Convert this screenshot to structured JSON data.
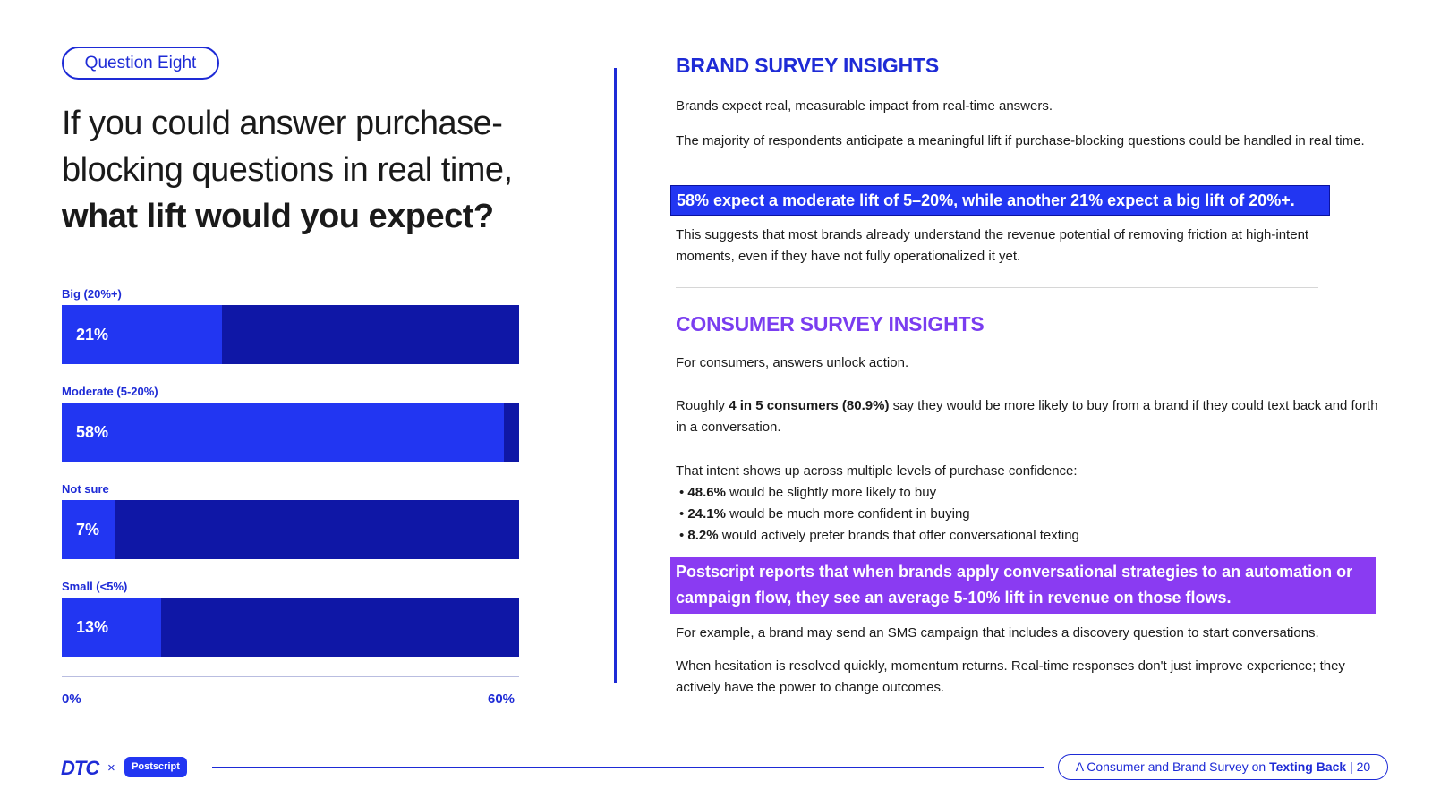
{
  "question_pill": "Question Eight",
  "headline": {
    "line1": "If you could answer purchase-",
    "line2": "blocking questions in real time,",
    "line3": "what lift would you expect?"
  },
  "chart_data": {
    "type": "bar",
    "orientation": "horizontal",
    "categories": [
      "Big (20%+)",
      "Moderate (5-20%)",
      "Not sure",
      "Small (<5%)"
    ],
    "values": [
      21,
      58,
      7,
      13
    ],
    "value_labels": [
      "21%",
      "58%",
      "7%",
      "13%"
    ],
    "xlim": [
      0,
      60
    ],
    "x_ticks": [
      "0%",
      "60%"
    ],
    "colors": {
      "fill": "#2236f2",
      "track": "#0f17a6"
    }
  },
  "brand": {
    "title": "BRAND SURVEY INSIGHTS",
    "p1": "Brands expect real, measurable impact from real-time answers.",
    "p2": "The majority of respondents anticipate a meaningful lift if purchase-blocking questions could be handled in real time.",
    "highlight": "58% expect a moderate lift of 5–20%, while another 21% expect a big lift of 20%+.",
    "p3": "This suggests that most brands already understand the revenue potential of removing friction at high-intent moments, even if they have not fully operationalized it yet."
  },
  "consumer": {
    "title": "CONSUMER SURVEY INSIGHTS",
    "p1": "For consumers, answers unlock action.",
    "p2_prefix": "Roughly ",
    "p2_bold": "4 in 5 consumers (80.9%)",
    "p2_suffix": " say they would be more likely to buy from a brand if they could text back and forth in a conversation.",
    "p3": "That intent shows up across multiple levels of purchase confidence:",
    "bullets": [
      {
        "bold": "48.6%",
        "text": " would be slightly more likely to buy"
      },
      {
        "bold": "24.1%",
        "text": " would be much more confident in buying"
      },
      {
        "bold": "8.2%",
        "text": " would actively prefer brands that offer conversational texting"
      }
    ],
    "highlight": "Postscript reports that when brands apply conversational strategies to an automation or campaign flow, they see an average 5-10% lift in revenue on those flows.",
    "p4": "For example, a brand may send an SMS campaign that includes a discovery question to start conversations.",
    "p5": "When hesitation is resolved quickly, momentum returns. Real-time responses don't just improve experience; they actively have the power to change outcomes."
  },
  "footer": {
    "logo_dtc": "DTC",
    "logo_x": "×",
    "logo_postscript": "Postscript",
    "report_prefix": "A Consumer and Brand Survey on ",
    "report_bold": "Texting Back",
    "page_sep": " | ",
    "page_number": "20"
  },
  "colors": {
    "brand_blue": "#1e2bd6",
    "bar_fill": "#2236f2",
    "bar_track": "#0f17a6",
    "purple": "#8a3bf2"
  }
}
